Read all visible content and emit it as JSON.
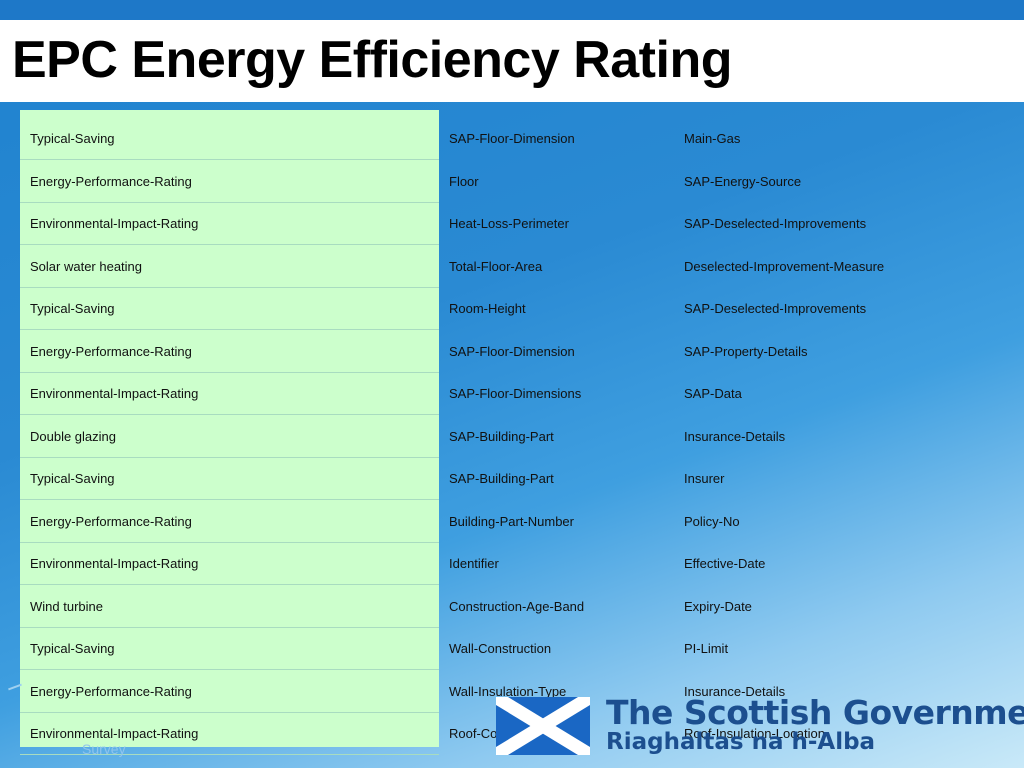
{
  "title": "EPC Energy Efficiency Rating",
  "rows": [
    {
      "c1": "Typical-Saving",
      "c2": "SAP-Floor-Dimension",
      "c3": "Main-Gas"
    },
    {
      "c1": "Energy-Performance-Rating",
      "c2": "Floor",
      "c3": "SAP-Energy-Source"
    },
    {
      "c1": "Environmental-Impact-Rating",
      "c2": "Heat-Loss-Perimeter",
      "c3": "SAP-Deselected-Improvements"
    },
    {
      "c1": "Solar water heating",
      "c2": "Total-Floor-Area",
      "c3": "Deselected-Improvement-Measure"
    },
    {
      "c1": "Typical-Saving",
      "c2": "Room-Height",
      "c3": "SAP-Deselected-Improvements"
    },
    {
      "c1": "Energy-Performance-Rating",
      "c2": "SAP-Floor-Dimension",
      "c3": "SAP-Property-Details"
    },
    {
      "c1": "Environmental-Impact-Rating",
      "c2": "SAP-Floor-Dimensions",
      "c3": "SAP-Data"
    },
    {
      "c1": "Double glazing",
      "c2": "SAP-Building-Part",
      "c3": "Insurance-Details"
    },
    {
      "c1": "Typical-Saving",
      "c2": "SAP-Building-Part",
      "c3": "Insurer"
    },
    {
      "c1": "Energy-Performance-Rating",
      "c2": "Building-Part-Number",
      "c3": "Policy-No"
    },
    {
      "c1": "Environmental-Impact-Rating",
      "c2": "Identifier",
      "c3": "Effective-Date"
    },
    {
      "c1": "Wind turbine",
      "c2": "Construction-Age-Band",
      "c3": "Expiry-Date"
    },
    {
      "c1": "Typical-Saving",
      "c2": "Wall-Construction",
      "c3": "PI-Limit"
    },
    {
      "c1": "Energy-Performance-Rating",
      "c2": "Wall-Insulation-Type",
      "c3": "Insurance-Details"
    },
    {
      "c1": "Environmental-Impact-Rating",
      "c2": "Roof-Construction",
      "c3": "Roof-Insulation-Location"
    }
  ],
  "footer_text": "Survey",
  "logo": {
    "line1": "The Scottish Government",
    "line2": "Riaghaltas na h-Alba",
    "icon": "saltire-flag-icon"
  },
  "colors": {
    "title_band": "#1e78c8",
    "highlight_column": "#ccffcc",
    "logo_text": "#1c4f8f"
  }
}
